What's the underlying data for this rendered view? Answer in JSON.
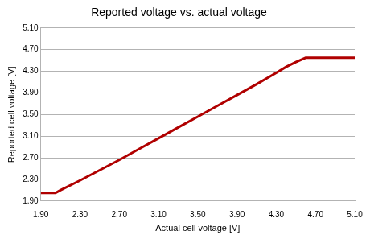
{
  "chart_data": {
    "type": "line",
    "title": "Reported voltage vs. actual voltage",
    "x_label": "Actual cell voltage [V]",
    "y_label": "Reported cell voltage [V]",
    "x": [
      1.9,
      2.05,
      2.1,
      2.3,
      2.5,
      2.7,
      2.9,
      3.1,
      3.3,
      3.5,
      3.7,
      3.9,
      4.1,
      4.3,
      4.4,
      4.5,
      4.6,
      4.8,
      5.1
    ],
    "values": [
      2.05,
      2.05,
      2.1,
      2.28,
      2.47,
      2.66,
      2.86,
      3.06,
      3.26,
      3.46,
      3.66,
      3.86,
      4.06,
      4.27,
      4.38,
      4.47,
      4.55,
      4.55,
      4.55
    ],
    "color": "#b00000",
    "xlim": [
      1.9,
      5.1
    ],
    "ylim": [
      1.9,
      5.1
    ],
    "xticks": [
      {
        "value": 1.9,
        "label": "1.90"
      },
      {
        "value": 2.3,
        "label": "2.30"
      },
      {
        "value": 2.7,
        "label": "2.70"
      },
      {
        "value": 3.1,
        "label": "3.10"
      },
      {
        "value": 3.5,
        "label": "3.50"
      },
      {
        "value": 3.9,
        "label": "3.90"
      },
      {
        "value": 4.3,
        "label": "4.30"
      },
      {
        "value": 4.7,
        "label": "4.70"
      },
      {
        "value": 5.1,
        "label": "5.10"
      }
    ],
    "yticks": [
      {
        "value": 1.9,
        "label": "1.90"
      },
      {
        "value": 2.3,
        "label": "2.30"
      },
      {
        "value": 2.7,
        "label": "2.70"
      },
      {
        "value": 3.1,
        "label": "3.10"
      },
      {
        "value": 3.5,
        "label": "3.50"
      },
      {
        "value": 3.9,
        "label": "3.90"
      },
      {
        "value": 4.3,
        "label": "4.30"
      },
      {
        "value": 4.7,
        "label": "4.70"
      },
      {
        "value": 5.1,
        "label": "5.10"
      }
    ],
    "grid": true
  }
}
